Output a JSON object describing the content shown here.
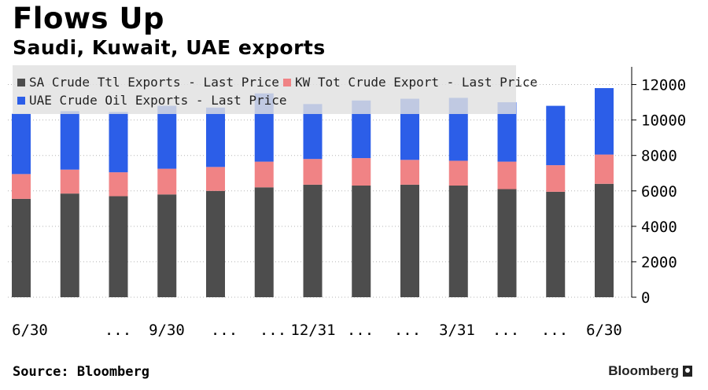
{
  "title": "Flows Up",
  "subtitle": "Saudi, Kuwait, UAE exports",
  "source": "Source: Bloomberg",
  "brand": "Bloomberg",
  "colors": {
    "sa": "#4d4d4d",
    "kw": "#f08385",
    "uae": "#2c5ee8",
    "grid": "#b3b3b3"
  },
  "legend": [
    {
      "label": "SA Crude Ttl Exports - Last Price",
      "color": "#4d4d4d"
    },
    {
      "label": "KW Tot Crude Export - Last Price",
      "color": "#f08385"
    },
    {
      "label": "UAE Crude Oil Exports - Last Price",
      "color": "#2c5ee8"
    }
  ],
  "chart_data": {
    "type": "bar",
    "stacked": true,
    "categories": [
      "6/30",
      "",
      "...",
      "9/30",
      "...",
      "",
      "12/31",
      "...",
      "...",
      "3/31",
      "...",
      "...",
      "6/30"
    ],
    "x_tick_labels": [
      "6/30",
      "...",
      "9/30",
      "...",
      "...",
      "12/31",
      "...",
      "...",
      "3/31",
      "...",
      "...",
      "6/30"
    ],
    "series": [
      {
        "name": "SA Crude Ttl Exports - Last Price",
        "values": [
          5550,
          5850,
          5700,
          5800,
          6000,
          6200,
          6350,
          6300,
          6350,
          6300,
          6100,
          5950,
          6400
        ]
      },
      {
        "name": "KW Tot Crude Export - Last Price",
        "values": [
          1400,
          1350,
          1350,
          1450,
          1350,
          1450,
          1450,
          1550,
          1400,
          1400,
          1550,
          1500,
          1650
        ]
      },
      {
        "name": "UAE Crude Oil Exports - Last Price",
        "values": [
          3400,
          3300,
          3400,
          3550,
          3350,
          3850,
          3100,
          3250,
          3450,
          3550,
          3350,
          3350,
          3750
        ]
      }
    ],
    "y_ticks": [
      0,
      2000,
      4000,
      6000,
      8000,
      10000,
      12000
    ],
    "ylim": [
      0,
      13000
    ],
    "grid": true,
    "legend_placement": "top-left",
    "y_axis_side": "right"
  }
}
